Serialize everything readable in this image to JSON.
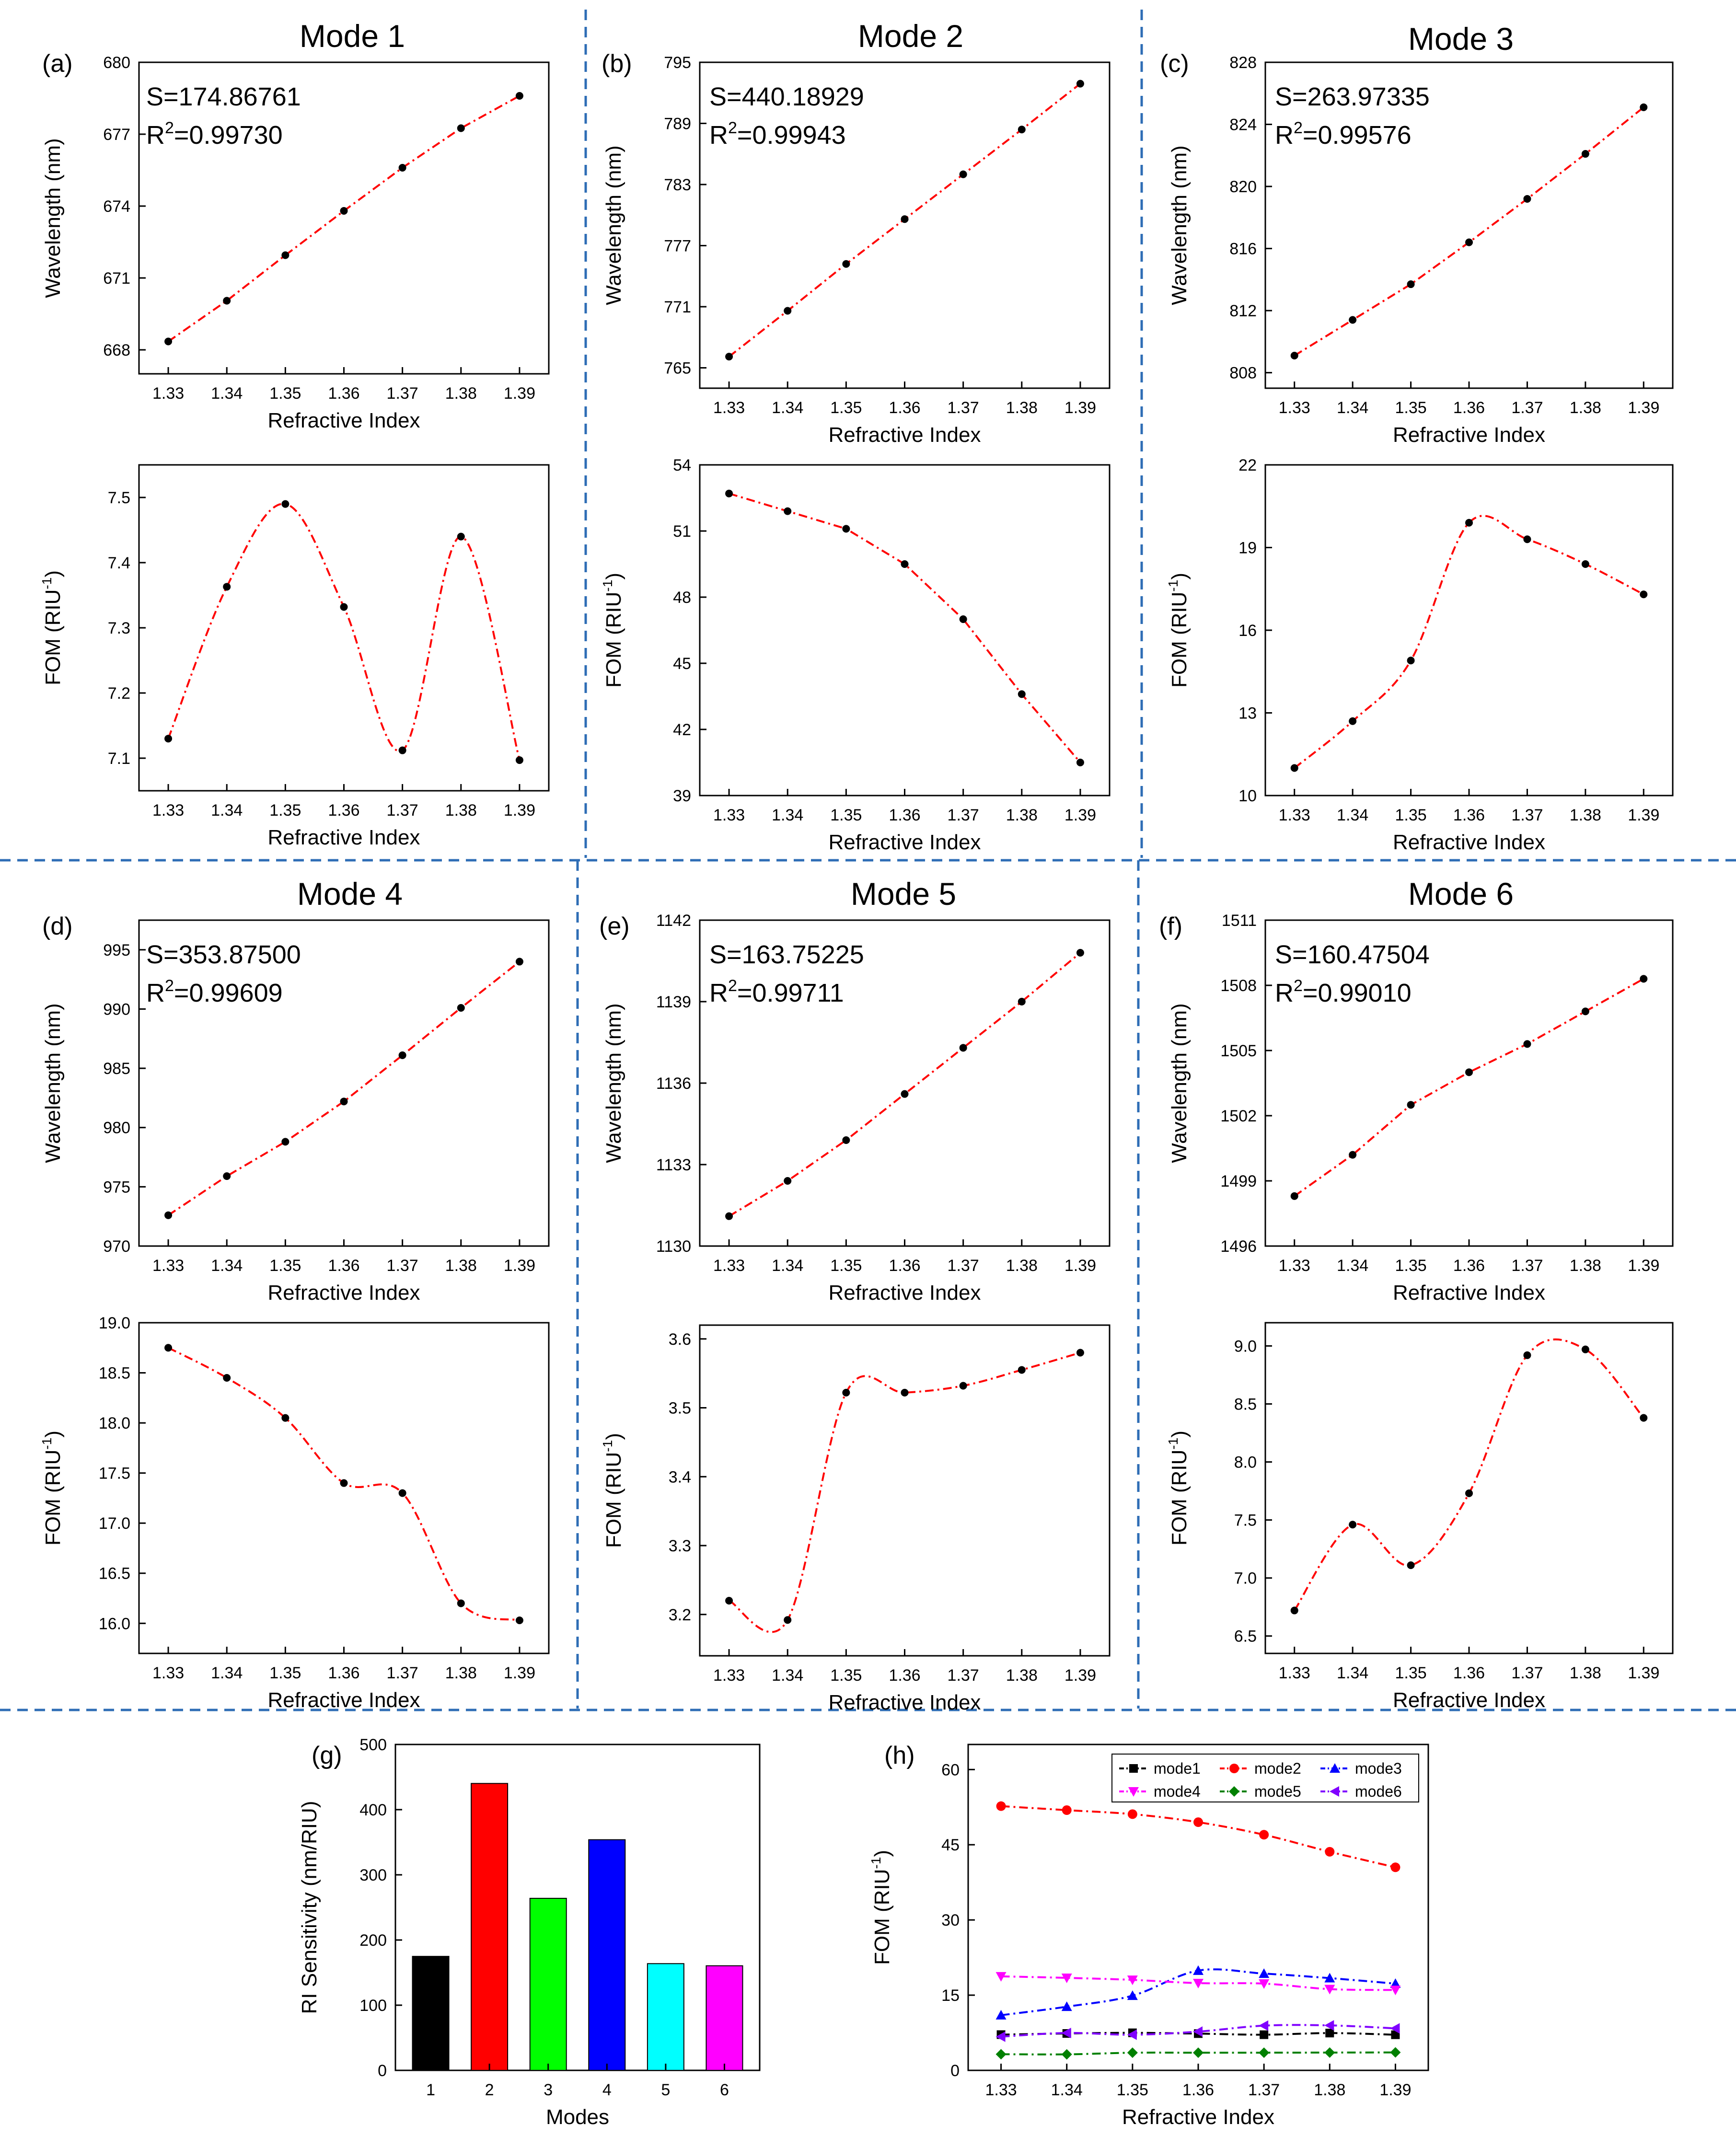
{
  "figure": {
    "panels": [
      {
        "id": "a",
        "label": "(a)",
        "mode_title": "Mode 1",
        "s_text": "S=174.86761",
        "r2_prefix": "R",
        "r2_sup": "2",
        "r2_value": "=0.99730"
      },
      {
        "id": "b",
        "label": "(b)",
        "mode_title": "Mode 2",
        "s_text": "S=440.18929",
        "r2_prefix": "R",
        "r2_sup": "2",
        "r2_value": "=0.99943"
      },
      {
        "id": "c",
        "label": "(c)",
        "mode_title": "Mode 3",
        "s_text": "S=263.97335",
        "r2_prefix": "R",
        "r2_sup": "2",
        "r2_value": "=0.99576"
      },
      {
        "id": "d",
        "label": "(d)",
        "mode_title": "Mode 4",
        "s_text": "S=353.87500",
        "r2_prefix": "R",
        "r2_sup": "2",
        "r2_value": "=0.99609"
      },
      {
        "id": "e",
        "label": "(e)",
        "mode_title": "Mode 5",
        "s_text": "S=163.75225",
        "r2_prefix": "R",
        "r2_sup": "2",
        "r2_value": "=0.99711"
      },
      {
        "id": "f",
        "label": "(f)",
        "mode_title": "Mode 6",
        "s_text": "S=160.47504",
        "r2_prefix": "R",
        "r2_sup": "2",
        "r2_value": "=0.99010"
      },
      {
        "id": "g",
        "label": "(g)"
      },
      {
        "id": "h",
        "label": "(h)"
      }
    ]
  },
  "chart_data": [
    {
      "id": "a_wl",
      "type": "line",
      "xlabel": "Refractive Index",
      "ylabel": "Wavelength (nm)",
      "x": [
        1.33,
        1.34,
        1.35,
        1.36,
        1.37,
        1.38,
        1.39
      ],
      "y": [
        668.35,
        670.05,
        671.95,
        673.8,
        675.6,
        677.25,
        678.6
      ],
      "ylim": [
        667,
        680
      ],
      "yticks": [
        668,
        671,
        674,
        677,
        680
      ],
      "xticks": [
        1.33,
        1.34,
        1.35,
        1.36,
        1.37,
        1.38,
        1.39
      ]
    },
    {
      "id": "a_fom",
      "type": "line",
      "xlabel": "Refractive Index",
      "ylabel_main": "FOM (RIU",
      "ylabel_sup": "-1",
      "ylabel_end": ")",
      "x": [
        1.33,
        1.34,
        1.35,
        1.36,
        1.37,
        1.38,
        1.39
      ],
      "y": [
        7.13,
        7.363,
        7.49,
        7.332,
        7.112,
        7.44,
        7.097
      ],
      "ylim": [
        7.05,
        7.55
      ],
      "yticks": [
        7.1,
        7.2,
        7.3,
        7.4,
        7.5
      ],
      "xticks": [
        1.33,
        1.34,
        1.35,
        1.36,
        1.37,
        1.38,
        1.39
      ]
    },
    {
      "id": "b_wl",
      "type": "line",
      "xlabel": "Refractive Index",
      "ylabel": "Wavelength (nm)",
      "x": [
        1.33,
        1.34,
        1.35,
        1.36,
        1.37,
        1.38,
        1.39
      ],
      "y": [
        766.1,
        770.6,
        775.2,
        779.6,
        784,
        788.4,
        792.9
      ],
      "ylim": [
        763,
        795
      ],
      "yticks": [
        765,
        771,
        777,
        783,
        789,
        795
      ],
      "xticks": [
        1.33,
        1.34,
        1.35,
        1.36,
        1.37,
        1.38,
        1.39
      ]
    },
    {
      "id": "b_fom",
      "type": "line",
      "xlabel": "Refractive Index",
      "ylabel_main": "FOM (RIU",
      "ylabel_sup": "-1",
      "ylabel_end": ")",
      "x": [
        1.33,
        1.34,
        1.35,
        1.36,
        1.37,
        1.38,
        1.39
      ],
      "y": [
        52.7,
        51.9,
        51.1,
        49.5,
        47,
        43.6,
        40.5
      ],
      "ylim": [
        39,
        54
      ],
      "yticks": [
        39,
        42,
        45,
        48,
        51,
        54
      ],
      "xticks": [
        1.33,
        1.34,
        1.35,
        1.36,
        1.37,
        1.38,
        1.39
      ]
    },
    {
      "id": "c_wl",
      "type": "line",
      "xlabel": "Refractive Index",
      "ylabel": "Wavelength (nm)",
      "x": [
        1.33,
        1.34,
        1.35,
        1.36,
        1.37,
        1.38,
        1.39
      ],
      "y": [
        809.1,
        811.4,
        813.7,
        816.4,
        819.2,
        822.1,
        825.1
      ],
      "ylim": [
        807,
        828
      ],
      "yticks": [
        808,
        812,
        816,
        820,
        824,
        828
      ],
      "xticks": [
        1.33,
        1.34,
        1.35,
        1.36,
        1.37,
        1.38,
        1.39
      ]
    },
    {
      "id": "c_fom",
      "type": "line",
      "xlabel": "Refractive Index",
      "ylabel_main": "FOM (RIU",
      "ylabel_sup": "-1",
      "ylabel_end": ")",
      "x": [
        1.33,
        1.34,
        1.35,
        1.36,
        1.37,
        1.38,
        1.39
      ],
      "y": [
        11,
        12.7,
        14.9,
        19.9,
        19.3,
        18.4,
        17.3
      ],
      "ylim": [
        10,
        22
      ],
      "yticks": [
        10,
        13,
        16,
        19,
        22
      ],
      "xticks": [
        1.33,
        1.34,
        1.35,
        1.36,
        1.37,
        1.38,
        1.39
      ]
    },
    {
      "id": "d_wl",
      "type": "line",
      "xlabel": "Refractive Index",
      "ylabel": "Wavelength (nm)",
      "x": [
        1.33,
        1.34,
        1.35,
        1.36,
        1.37,
        1.38,
        1.39
      ],
      "y": [
        972.6,
        975.9,
        978.8,
        982.2,
        986.1,
        990.1,
        994
      ],
      "ylim": [
        970,
        997.5
      ],
      "yticks": [
        970,
        975,
        980,
        985,
        990,
        995
      ],
      "xticks": [
        1.33,
        1.34,
        1.35,
        1.36,
        1.37,
        1.38,
        1.39
      ]
    },
    {
      "id": "d_fom",
      "type": "line",
      "xlabel": "Refractive Index",
      "ylabel_main": "FOM (RIU",
      "ylabel_sup": "-1",
      "ylabel_end": ")",
      "x": [
        1.33,
        1.34,
        1.35,
        1.36,
        1.37,
        1.38,
        1.39
      ],
      "y": [
        18.75,
        18.45,
        18.05,
        17.4,
        17.3,
        16.2,
        16.03
      ],
      "ylim": [
        15.7,
        19
      ],
      "yticks": [
        16,
        16.5,
        17,
        17.5,
        18,
        18.5,
        19
      ],
      "ytick_labels": [
        "16.0",
        "16.5",
        "17.0",
        "17.5",
        "18.0",
        "18.5",
        "19.0"
      ],
      "xticks": [
        1.33,
        1.34,
        1.35,
        1.36,
        1.37,
        1.38,
        1.39
      ]
    },
    {
      "id": "e_wl",
      "type": "line",
      "xlabel": "Refractive Index",
      "ylabel": "Wavelength (nm)",
      "x": [
        1.33,
        1.34,
        1.35,
        1.36,
        1.37,
        1.38,
        1.39
      ],
      "y": [
        1131.1,
        1132.4,
        1133.9,
        1135.6,
        1137.3,
        1139,
        1140.8
      ],
      "ylim": [
        1130,
        1142
      ],
      "yticks": [
        1130,
        1133,
        1136,
        1139,
        1142
      ],
      "xticks": [
        1.33,
        1.34,
        1.35,
        1.36,
        1.37,
        1.38,
        1.39
      ]
    },
    {
      "id": "e_fom",
      "type": "line",
      "xlabel": "Refractive Index",
      "ylabel_main": "FOM (RIU",
      "ylabel_sup": "-1",
      "ylabel_end": ")",
      "x": [
        1.33,
        1.34,
        1.35,
        1.36,
        1.37,
        1.38,
        1.39
      ],
      "y": [
        3.22,
        3.192,
        3.522,
        3.522,
        3.532,
        3.555,
        3.58
      ],
      "ylim": [
        3.14,
        3.62
      ],
      "yticks": [
        3.2,
        3.3,
        3.4,
        3.5,
        3.6
      ],
      "ytick_labels": [
        "3.2",
        "3.3",
        "3.4",
        "3.5",
        "3.6"
      ],
      "xticks": [
        1.33,
        1.34,
        1.35,
        1.36,
        1.37,
        1.38,
        1.39
      ]
    },
    {
      "id": "f_wl",
      "type": "line",
      "xlabel": "Refractive Index",
      "ylabel": "Wavelength (nm)",
      "x": [
        1.33,
        1.34,
        1.35,
        1.36,
        1.37,
        1.38,
        1.39
      ],
      "y": [
        1498.3,
        1500.2,
        1502.5,
        1504,
        1505.3,
        1506.8,
        1508.3
      ],
      "ylim": [
        1496,
        1511
      ],
      "yticks": [
        1496,
        1499,
        1502,
        1505,
        1508,
        1511
      ],
      "xticks": [
        1.33,
        1.34,
        1.35,
        1.36,
        1.37,
        1.38,
        1.39
      ]
    },
    {
      "id": "f_fom",
      "type": "line",
      "xlabel": "Refractive Index",
      "ylabel_main": "FOM (RIU",
      "ylabel_sup": "-1",
      "ylabel_end": ")",
      "x": [
        1.33,
        1.34,
        1.35,
        1.36,
        1.37,
        1.38,
        1.39
      ],
      "y": [
        6.72,
        7.46,
        7.11,
        7.73,
        8.92,
        8.97,
        8.38
      ],
      "ylim": [
        6.35,
        9.2
      ],
      "yticks": [
        6.5,
        7,
        7.5,
        8,
        8.5,
        9
      ],
      "ytick_labels": [
        "6.5",
        "7.0",
        "7.5",
        "8.0",
        "8.5",
        "9.0"
      ],
      "xticks": [
        1.33,
        1.34,
        1.35,
        1.36,
        1.37,
        1.38,
        1.39
      ]
    },
    {
      "id": "g_bar",
      "type": "bar",
      "xlabel": "Modes",
      "ylabel": "RI Sensitivity (nm/RIU)",
      "categories": [
        "1",
        "2",
        "3",
        "4",
        "5",
        "6"
      ],
      "values": [
        174.87,
        440.19,
        263.97,
        353.88,
        163.75,
        160.48
      ],
      "colors": [
        "#000000",
        "#ff0000",
        "#00ff00",
        "#0000ff",
        "#00ffff",
        "#ff00ff"
      ],
      "ylim": [
        0,
        500
      ],
      "yticks": [
        0,
        100,
        200,
        300,
        400,
        500
      ]
    },
    {
      "id": "h_multi",
      "type": "line",
      "xlabel": "Refractive Index",
      "ylabel_main": "FOM (RIU",
      "ylabel_sup": "-1",
      "ylabel_end": ")",
      "x": [
        1.33,
        1.34,
        1.35,
        1.36,
        1.37,
        1.38,
        1.39
      ],
      "ylim": [
        0,
        65
      ],
      "yticks": [
        0,
        15,
        30,
        45,
        60
      ],
      "xticks": [
        1.33,
        1.34,
        1.35,
        1.36,
        1.37,
        1.38,
        1.39
      ],
      "series": [
        {
          "name": "mode1",
          "color": "#000000",
          "marker": "square",
          "values": [
            7.13,
            7.36,
            7.49,
            7.33,
            7.11,
            7.44,
            7.1
          ]
        },
        {
          "name": "mode2",
          "color": "#ff0000",
          "marker": "circle",
          "values": [
            52.7,
            51.9,
            51.1,
            49.5,
            47,
            43.6,
            40.5
          ]
        },
        {
          "name": "mode3",
          "color": "#0000ff",
          "marker": "triangle-up",
          "values": [
            11,
            12.7,
            14.9,
            19.9,
            19.3,
            18.4,
            17.3
          ]
        },
        {
          "name": "mode4",
          "color": "#ff00ff",
          "marker": "triangle-down",
          "values": [
            18.75,
            18.45,
            18.05,
            17.4,
            17.3,
            16.2,
            16.03
          ]
        },
        {
          "name": "mode5",
          "color": "#008000",
          "marker": "diamond",
          "values": [
            3.22,
            3.19,
            3.52,
            3.52,
            3.53,
            3.55,
            3.58
          ]
        },
        {
          "name": "mode6",
          "color": "#8000ff",
          "marker": "triangle-left",
          "values": [
            6.72,
            7.46,
            7.11,
            7.73,
            8.92,
            8.97,
            8.38
          ]
        }
      ]
    }
  ]
}
